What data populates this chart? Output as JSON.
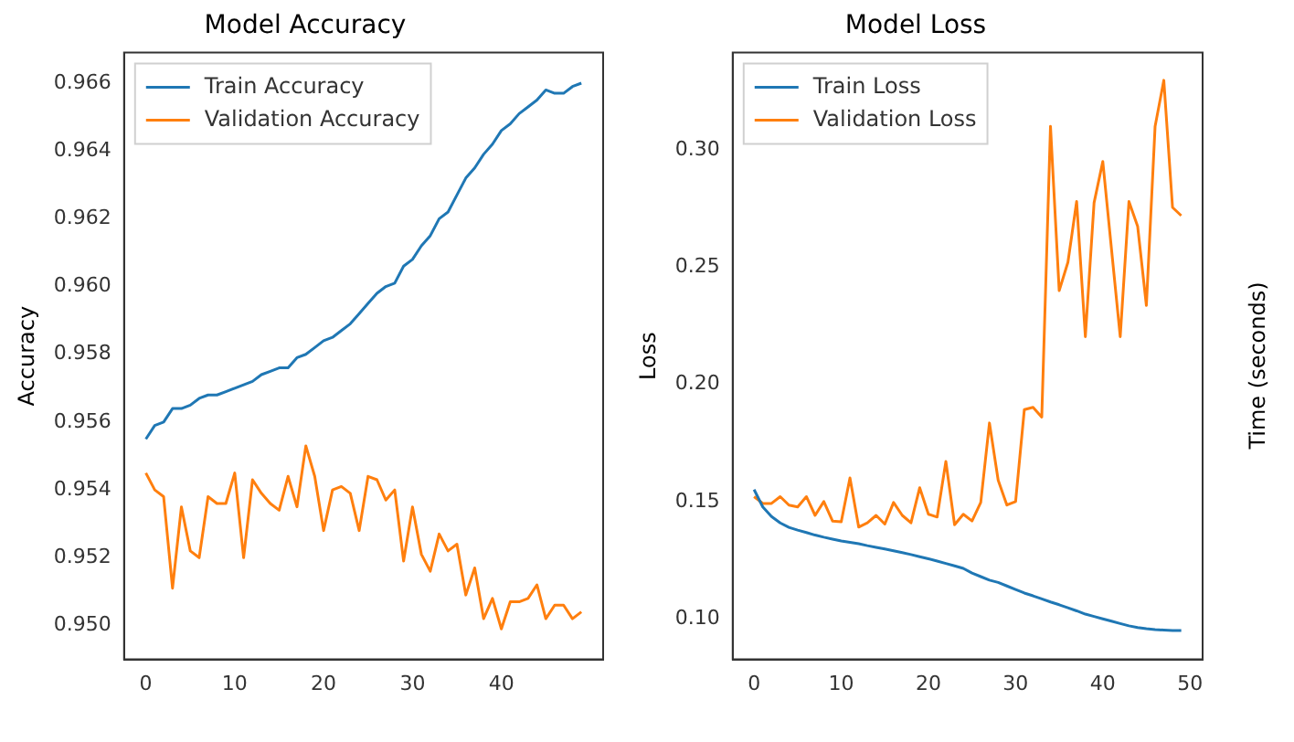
{
  "chart_data": [
    {
      "type": "line",
      "title": "Model Accuracy",
      "ylabel": "Accuracy",
      "x": [
        0,
        1,
        2,
        3,
        4,
        5,
        6,
        7,
        8,
        9,
        10,
        11,
        12,
        13,
        14,
        15,
        16,
        17,
        18,
        19,
        20,
        21,
        22,
        23,
        24,
        25,
        26,
        27,
        28,
        29,
        30,
        31,
        32,
        33,
        34,
        35,
        36,
        37,
        38,
        39,
        40,
        41,
        42,
        43,
        44,
        45,
        46,
        47,
        48,
        49
      ],
      "xlim": [
        -2.45,
        51.45
      ],
      "xticks": [
        0,
        10,
        20,
        30,
        40
      ],
      "ylim": [
        0.949,
        0.9669
      ],
      "yticks": [
        {
          "value": 0.95,
          "label": "0.950"
        },
        0.952,
        0.954,
        0.956,
        0.958,
        {
          "value": 0.96,
          "label": "0.960"
        },
        0.962,
        0.964,
        0.966
      ],
      "legend": "top left",
      "grid": false,
      "series": [
        {
          "name": "Train Accuracy",
          "color": "#1f77b4",
          "values": [
            0.9555,
            0.9559,
            0.956,
            0.9564,
            0.9564,
            0.9565,
            0.9567,
            0.9568,
            0.9568,
            0.9569,
            0.957,
            0.9571,
            0.9572,
            0.9574,
            0.9575,
            0.9576,
            0.9576,
            0.9579,
            0.958,
            0.9582,
            0.9584,
            0.9585,
            0.9587,
            0.9589,
            0.9592,
            0.9595,
            0.9598,
            0.96,
            0.9601,
            0.9606,
            0.9608,
            0.9612,
            0.9615,
            0.962,
            0.9622,
            0.9627,
            0.9632,
            0.9635,
            0.9639,
            0.9642,
            0.9646,
            0.9648,
            0.9651,
            0.9653,
            0.9655,
            0.9658,
            0.9657,
            0.9657,
            0.9659,
            0.966
          ]
        },
        {
          "name": "Validation Accuracy",
          "color": "#ff7f0e",
          "values": [
            0.9545,
            0.954,
            0.9538,
            0.9511,
            0.9535,
            0.9522,
            0.952,
            0.9538,
            0.9536,
            0.9536,
            0.9545,
            0.952,
            0.9543,
            0.9539,
            0.9536,
            0.9534,
            0.9544,
            0.9535,
            0.9553,
            0.9544,
            0.9528,
            0.954,
            0.9541,
            0.9539,
            0.9528,
            0.9544,
            0.9543,
            0.9537,
            0.954,
            0.9519,
            0.9535,
            0.9521,
            0.9516,
            0.9527,
            0.9522,
            0.9524,
            0.9509,
            0.9517,
            0.9502,
            0.9508,
            0.9499,
            0.9507,
            0.9507,
            0.9508,
            0.9512,
            0.9502,
            0.9506,
            0.9506,
            0.9502,
            0.9504
          ]
        }
      ]
    },
    {
      "type": "line",
      "title": "Model Loss",
      "ylabel": "Loss",
      "x": [
        0,
        1,
        2,
        3,
        4,
        5,
        6,
        7,
        8,
        9,
        10,
        11,
        12,
        13,
        14,
        15,
        16,
        17,
        18,
        19,
        20,
        21,
        22,
        23,
        24,
        25,
        26,
        27,
        28,
        29,
        30,
        31,
        32,
        33,
        34,
        35,
        36,
        37,
        38,
        39,
        40,
        41,
        42,
        43,
        44,
        45,
        46,
        47,
        48,
        49
      ],
      "xlim": [
        -2.45,
        51.45
      ],
      "xticks": [
        0,
        10,
        20,
        30,
        40,
        50
      ],
      "ylim": [
        0.0827,
        0.3414
      ],
      "yticks": [
        {
          "value": 0.1,
          "label": "0.10"
        },
        0.15,
        {
          "value": 0.2,
          "label": "0.20"
        },
        0.25,
        {
          "value": 0.3,
          "label": "0.30"
        }
      ],
      "legend": "top left",
      "grid": false,
      "series": [
        {
          "name": "Train Loss",
          "color": "#1f77b4",
          "values": [
            0.1551,
            0.1477,
            0.1436,
            0.1409,
            0.139,
            0.1378,
            0.1368,
            0.1357,
            0.1348,
            0.134,
            0.1332,
            0.1326,
            0.132,
            0.1312,
            0.1305,
            0.1298,
            0.129,
            0.1282,
            0.1274,
            0.1265,
            0.1256,
            0.1246,
            0.1236,
            0.1226,
            0.1215,
            0.1195,
            0.118,
            0.1165,
            0.1155,
            0.114,
            0.1125,
            0.111,
            0.1098,
            0.1085,
            0.1072,
            0.106,
            0.1047,
            0.1034,
            0.102,
            0.101,
            0.1,
            0.099,
            0.098,
            0.097,
            0.0963,
            0.0958,
            0.0954,
            0.0952,
            0.095,
            0.095
          ]
        },
        {
          "name": "Validation Loss",
          "color": "#ff7f0e",
          "values": [
            0.1521,
            0.1492,
            0.1492,
            0.1521,
            0.1485,
            0.1477,
            0.1521,
            0.1441,
            0.15,
            0.1417,
            0.1414,
            0.1601,
            0.1391,
            0.1409,
            0.1441,
            0.1404,
            0.1496,
            0.1441,
            0.1409,
            0.1559,
            0.1446,
            0.1434,
            0.1671,
            0.1401,
            0.1446,
            0.1417,
            0.1496,
            0.1835,
            0.1591,
            0.1485,
            0.15,
            0.1892,
            0.1902,
            0.186,
            0.31,
            0.2399,
            0.252,
            0.2779,
            0.2203,
            0.2774,
            0.295,
            0.2575,
            0.2203,
            0.2779,
            0.2673,
            0.2336,
            0.31,
            0.3296,
            0.2754,
            0.2719
          ]
        }
      ]
    },
    {
      "type": "other",
      "ylabel": "Time (seconds)"
    }
  ]
}
